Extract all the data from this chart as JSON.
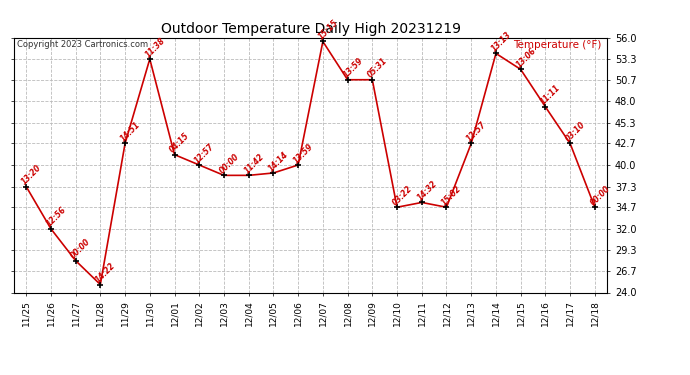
{
  "title": "Outdoor Temperature Daily High 20231219",
  "copyright": "Copyright 2023 Cartronics.com",
  "ylabel": "Temperature (°F)",
  "background_color": "#ffffff",
  "grid_color": "#bbbbbb",
  "line_color": "#cc0000",
  "label_color": "#cc0000",
  "dates": [
    "11/25",
    "11/26",
    "11/27",
    "11/28",
    "11/29",
    "11/30",
    "12/01",
    "12/02",
    "12/03",
    "12/04",
    "12/05",
    "12/06",
    "12/07",
    "12/08",
    "12/09",
    "12/10",
    "12/11",
    "12/12",
    "12/13",
    "12/14",
    "12/15",
    "12/16",
    "12/17",
    "12/18"
  ],
  "temps": [
    37.3,
    32.0,
    28.0,
    25.0,
    42.7,
    53.3,
    41.3,
    40.0,
    38.7,
    38.7,
    39.0,
    40.0,
    55.5,
    50.7,
    50.7,
    34.7,
    35.3,
    34.7,
    42.7,
    54.0,
    52.0,
    47.3,
    42.7,
    34.7
  ],
  "time_labels": [
    "13:20",
    "12:56",
    "00:00",
    "14:22",
    "14:51",
    "11:38",
    "04:15",
    "12:57",
    "00:00",
    "11:42",
    "14:14",
    "13:59",
    "15:15",
    "13:59",
    "05:31",
    "03:22",
    "14:32",
    "15:02",
    "12:57",
    "13:13",
    "13:06",
    "11:11",
    "03:10",
    "00:00"
  ],
  "ylim": [
    24.0,
    56.0
  ],
  "yticks": [
    24.0,
    26.7,
    29.3,
    32.0,
    34.7,
    37.3,
    40.0,
    42.7,
    45.3,
    48.0,
    50.7,
    53.3,
    56.0
  ],
  "figsize": [
    6.9,
    3.75
  ],
  "dpi": 100
}
